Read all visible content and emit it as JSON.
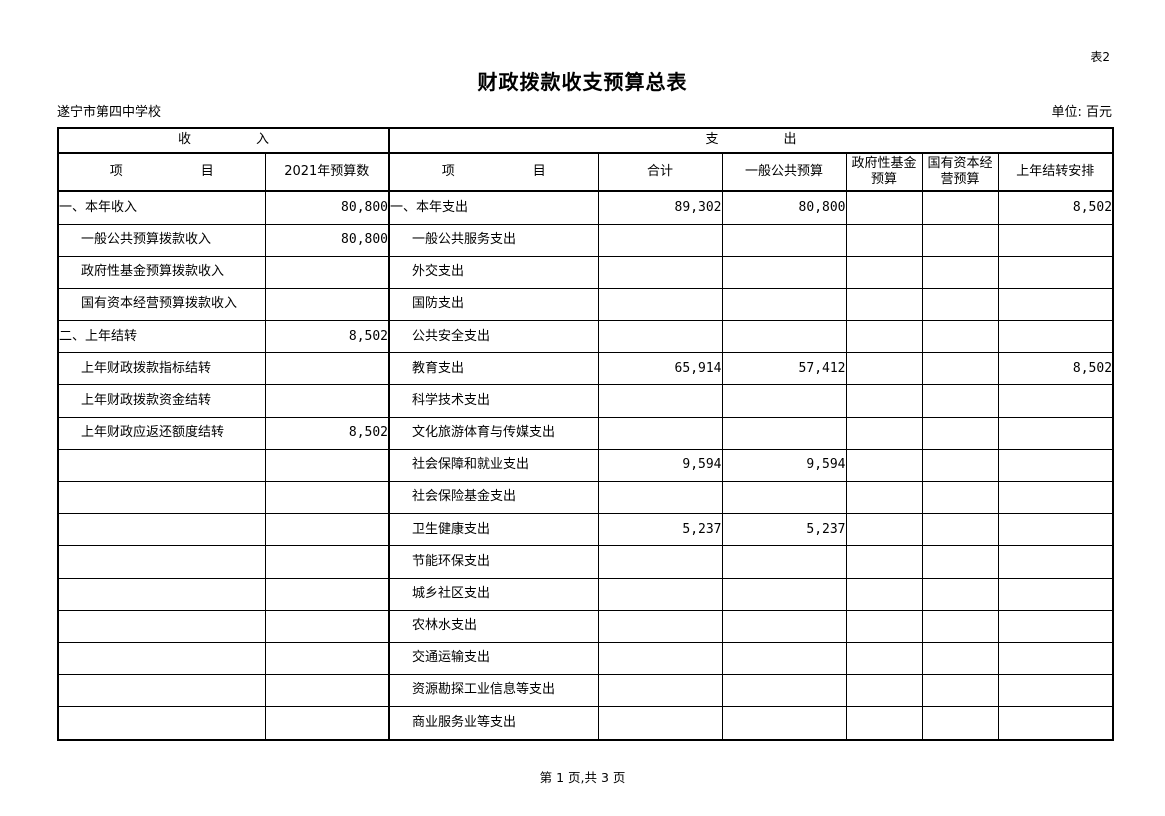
{
  "page": {
    "sheet_label": "表2",
    "title": "财政拨款收支预算总表",
    "org_name": "遂宁市第四中学校",
    "unit_label": "单位: 百元",
    "footer": "第 1 页,共 3 页"
  },
  "table": {
    "section_income": "收　　　　　入",
    "section_expense": "支　　　　　出",
    "columns": {
      "income_item": "项　　　　　　目",
      "income_budget": "2021年预算数",
      "expense_item": "项　　　　　　目",
      "total": "合计",
      "general_public": "一般公共预算",
      "gov_fund": "政府性基金预算",
      "state_capital": "国有资本经营预算",
      "carryover": "上年结转安排"
    },
    "rows": [
      {
        "income_item": "一、本年收入",
        "income_indent": false,
        "income_value": "80,800",
        "expense_item": "一、本年支出",
        "expense_indent": false,
        "total": "89,302",
        "general_public": "80,800",
        "gov_fund": "",
        "state_capital": "",
        "carryover": "8,502"
      },
      {
        "income_item": "一般公共预算拨款收入",
        "income_indent": true,
        "income_value": "80,800",
        "expense_item": "一般公共服务支出",
        "expense_indent": true,
        "total": "",
        "general_public": "",
        "gov_fund": "",
        "state_capital": "",
        "carryover": ""
      },
      {
        "income_item": "政府性基金预算拨款收入",
        "income_indent": true,
        "income_value": "",
        "expense_item": "外交支出",
        "expense_indent": true,
        "total": "",
        "general_public": "",
        "gov_fund": "",
        "state_capital": "",
        "carryover": ""
      },
      {
        "income_item": "国有资本经营预算拨款收入",
        "income_indent": true,
        "income_value": "",
        "expense_item": "国防支出",
        "expense_indent": true,
        "total": "",
        "general_public": "",
        "gov_fund": "",
        "state_capital": "",
        "carryover": ""
      },
      {
        "income_item": "二、上年结转",
        "income_indent": false,
        "income_value": "8,502",
        "expense_item": "公共安全支出",
        "expense_indent": true,
        "total": "",
        "general_public": "",
        "gov_fund": "",
        "state_capital": "",
        "carryover": ""
      },
      {
        "income_item": "上年财政拨款指标结转",
        "income_indent": true,
        "income_value": "",
        "expense_item": "教育支出",
        "expense_indent": true,
        "total": "65,914",
        "general_public": "57,412",
        "gov_fund": "",
        "state_capital": "",
        "carryover": "8,502"
      },
      {
        "income_item": "上年财政拨款资金结转",
        "income_indent": true,
        "income_value": "",
        "expense_item": "科学技术支出",
        "expense_indent": true,
        "total": "",
        "general_public": "",
        "gov_fund": "",
        "state_capital": "",
        "carryover": ""
      },
      {
        "income_item": "上年财政应返还额度结转",
        "income_indent": true,
        "income_value": "8,502",
        "expense_item": "文化旅游体育与传媒支出",
        "expense_indent": true,
        "total": "",
        "general_public": "",
        "gov_fund": "",
        "state_capital": "",
        "carryover": ""
      },
      {
        "income_item": "",
        "income_indent": false,
        "income_value": "",
        "expense_item": "社会保障和就业支出",
        "expense_indent": true,
        "total": "9,594",
        "general_public": "9,594",
        "gov_fund": "",
        "state_capital": "",
        "carryover": ""
      },
      {
        "income_item": "",
        "income_indent": false,
        "income_value": "",
        "expense_item": "社会保险基金支出",
        "expense_indent": true,
        "total": "",
        "general_public": "",
        "gov_fund": "",
        "state_capital": "",
        "carryover": ""
      },
      {
        "income_item": "",
        "income_indent": false,
        "income_value": "",
        "expense_item": "卫生健康支出",
        "expense_indent": true,
        "total": "5,237",
        "general_public": "5,237",
        "gov_fund": "",
        "state_capital": "",
        "carryover": ""
      },
      {
        "income_item": "",
        "income_indent": false,
        "income_value": "",
        "expense_item": "节能环保支出",
        "expense_indent": true,
        "total": "",
        "general_public": "",
        "gov_fund": "",
        "state_capital": "",
        "carryover": ""
      },
      {
        "income_item": "",
        "income_indent": false,
        "income_value": "",
        "expense_item": "城乡社区支出",
        "expense_indent": true,
        "total": "",
        "general_public": "",
        "gov_fund": "",
        "state_capital": "",
        "carryover": ""
      },
      {
        "income_item": "",
        "income_indent": false,
        "income_value": "",
        "expense_item": "农林水支出",
        "expense_indent": true,
        "total": "",
        "general_public": "",
        "gov_fund": "",
        "state_capital": "",
        "carryover": ""
      },
      {
        "income_item": "",
        "income_indent": false,
        "income_value": "",
        "expense_item": "交通运输支出",
        "expense_indent": true,
        "total": "",
        "general_public": "",
        "gov_fund": "",
        "state_capital": "",
        "carryover": ""
      },
      {
        "income_item": "",
        "income_indent": false,
        "income_value": "",
        "expense_item": "资源勘探工业信息等支出",
        "expense_indent": true,
        "total": "",
        "general_public": "",
        "gov_fund": "",
        "state_capital": "",
        "carryover": ""
      },
      {
        "income_item": "",
        "income_indent": false,
        "income_value": "",
        "expense_item": "商业服务业等支出",
        "expense_indent": true,
        "total": "",
        "general_public": "",
        "gov_fund": "",
        "state_capital": "",
        "carryover": ""
      }
    ]
  }
}
